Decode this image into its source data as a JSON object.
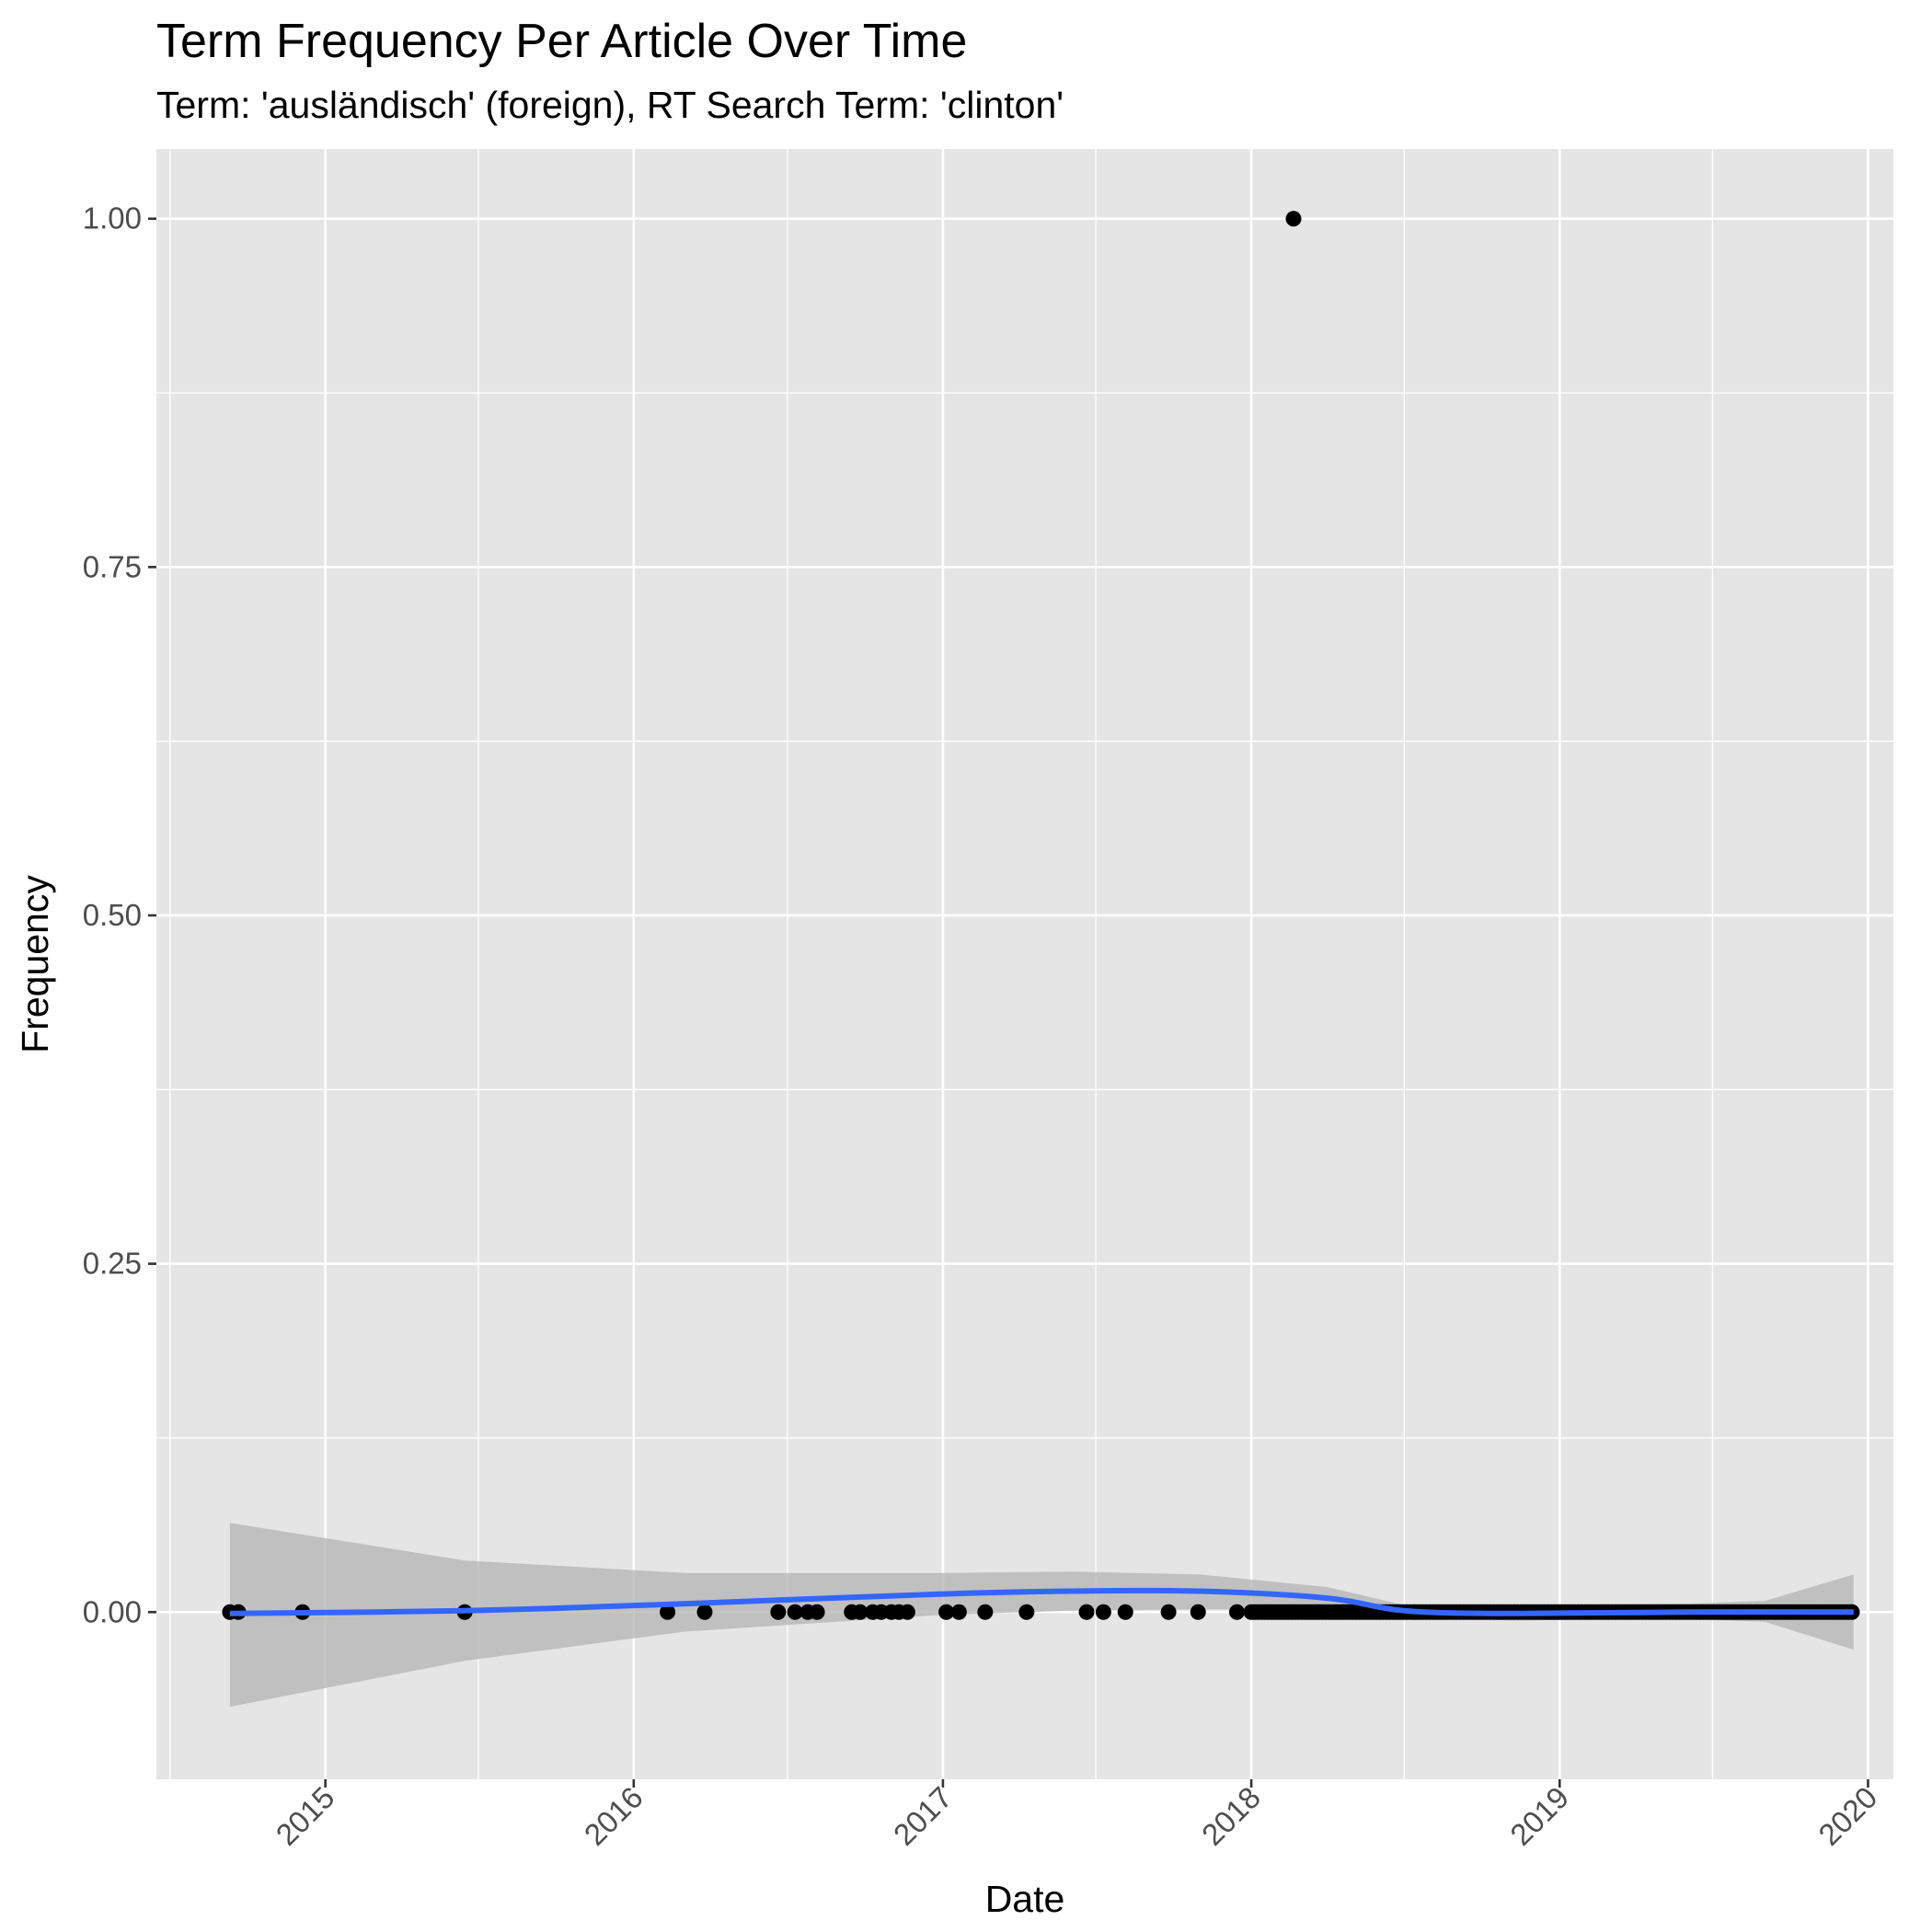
{
  "chart_data": {
    "type": "scatter",
    "title": "Term Frequency Per Article Over Time",
    "subtitle": "Term: 'ausländisch' (foreign), RT Search Term: 'clinton'",
    "xlabel": "Date",
    "ylabel": "Frequency",
    "x_scale": "date",
    "xlim": [
      "2014-06-15",
      "2020-01-31"
    ],
    "ylim": [
      -0.12,
      1.05
    ],
    "x_ticks": [
      "2015",
      "2016",
      "2017",
      "2018",
      "2019",
      "2020"
    ],
    "y_ticks": [
      "0.00",
      "0.25",
      "0.50",
      "0.75",
      "1.00"
    ],
    "grid": true,
    "colors": {
      "panel": "#e5e5e5",
      "grid": "#ffffff",
      "points": "#000000",
      "smooth_line": "#3366ff",
      "ribbon": "#b3b3b3"
    },
    "series": [
      {
        "type": "scatter",
        "points": [
          {
            "x": "2014-09-10",
            "y": 0
          },
          {
            "x": "2014-09-20",
            "y": 0
          },
          {
            "x": "2014-12-05",
            "y": 0
          },
          {
            "x": "2015-06-15",
            "y": 0
          },
          {
            "x": "2016-02-10",
            "y": 0
          },
          {
            "x": "2016-03-25",
            "y": 0
          },
          {
            "x": "2016-06-20",
            "y": 0
          },
          {
            "x": "2016-07-10",
            "y": 0
          },
          {
            "x": "2016-07-25",
            "y": 0
          },
          {
            "x": "2016-08-05",
            "y": 0
          },
          {
            "x": "2016-09-15",
            "y": 0
          },
          {
            "x": "2016-09-25",
            "y": 0
          },
          {
            "x": "2016-10-10",
            "y": 0
          },
          {
            "x": "2016-10-20",
            "y": 0
          },
          {
            "x": "2016-11-01",
            "y": 0
          },
          {
            "x": "2016-11-10",
            "y": 0
          },
          {
            "x": "2016-11-20",
            "y": 0
          },
          {
            "x": "2017-01-05",
            "y": 0
          },
          {
            "x": "2017-01-20",
            "y": 0
          },
          {
            "x": "2017-02-20",
            "y": 0
          },
          {
            "x": "2017-04-10",
            "y": 0
          },
          {
            "x": "2017-06-20",
            "y": 0
          },
          {
            "x": "2017-07-10",
            "y": 0
          },
          {
            "x": "2017-08-05",
            "y": 0
          },
          {
            "x": "2017-09-25",
            "y": 0
          },
          {
            "x": "2017-10-30",
            "y": 0
          },
          {
            "x": "2017-12-15",
            "y": 0
          },
          {
            "x": "2018-02-20",
            "y": 1
          }
        ],
        "dense_runs": [
          {
            "from": "2018-01-01",
            "to": "2018-07-15",
            "y": 0
          },
          {
            "from": "2018-07-15",
            "to": "2019-12-15",
            "y": 0
          }
        ]
      },
      {
        "type": "line",
        "name": "",
        "points": [
          {
            "x": "2014-09-10",
            "y": -0.001
          },
          {
            "x": "2015-06-15",
            "y": 0.001
          },
          {
            "x": "2016-03-01",
            "y": 0.006
          },
          {
            "x": "2017-01-01",
            "y": 0.013
          },
          {
            "x": "2017-06-01",
            "y": 0.015
          },
          {
            "x": "2017-11-01",
            "y": 0.015
          },
          {
            "x": "2018-04-01",
            "y": 0.01
          },
          {
            "x": "2018-07-01",
            "y": 0.001
          },
          {
            "x": "2018-11-01",
            "y": -0.001
          },
          {
            "x": "2019-06-01",
            "y": 0
          },
          {
            "x": "2019-12-15",
            "y": 0
          }
        ]
      },
      {
        "type": "ribbon",
        "points": [
          {
            "x": "2014-09-10",
            "lo": -0.068,
            "hi": 0.064
          },
          {
            "x": "2015-06-15",
            "lo": -0.035,
            "hi": 0.037
          },
          {
            "x": "2016-03-01",
            "lo": -0.014,
            "hi": 0.028
          },
          {
            "x": "2017-01-01",
            "lo": -0.002,
            "hi": 0.028
          },
          {
            "x": "2017-06-01",
            "lo": 0.001,
            "hi": 0.029
          },
          {
            "x": "2017-11-01",
            "lo": 0.002,
            "hi": 0.027
          },
          {
            "x": "2018-04-01",
            "lo": 0.002,
            "hi": 0.018
          },
          {
            "x": "2018-07-01",
            "lo": -0.003,
            "hi": 0.005
          },
          {
            "x": "2018-11-01",
            "lo": -0.006,
            "hi": 0.005
          },
          {
            "x": "2019-06-01",
            "lo": -0.005,
            "hi": 0.006
          },
          {
            "x": "2019-09-01",
            "lo": -0.007,
            "hi": 0.008
          },
          {
            "x": "2019-12-15",
            "lo": -0.027,
            "hi": 0.027
          }
        ]
      }
    ]
  }
}
